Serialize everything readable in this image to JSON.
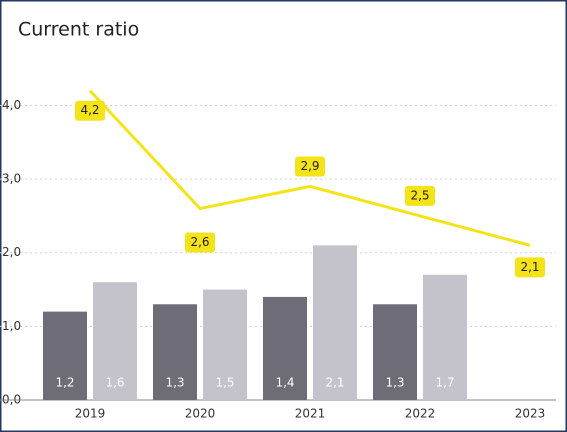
{
  "chart_data": {
    "type": "bar",
    "title": "Current ratio",
    "categories": [
      "2019",
      "2020",
      "2021",
      "2022",
      "2023"
    ],
    "series": [
      {
        "type": "bar",
        "color": "#6d6c77",
        "values": [
          1.2,
          1.3,
          1.4,
          1.3,
          null
        ],
        "value_labels": [
          "1,2",
          "1,3",
          "1,4",
          "1,3",
          null
        ]
      },
      {
        "type": "bar",
        "color": "#c4c3cc",
        "values": [
          1.6,
          1.5,
          2.1,
          1.7,
          null
        ],
        "value_labels": [
          "1,6",
          "1,5",
          "2,1",
          "1,7",
          null
        ]
      },
      {
        "type": "line",
        "color": "#f5e31a",
        "values": [
          4.2,
          2.6,
          2.9,
          2.5,
          2.1
        ],
        "value_labels": [
          "4,2",
          "2,6",
          "2,9",
          "2,5",
          "2,1"
        ]
      }
    ],
    "ylim": [
      0,
      4.4
    ],
    "yticks": [
      {
        "value": 0,
        "label": "0,0"
      },
      {
        "value": 1,
        "label": "1,0"
      },
      {
        "value": 2,
        "label": "2,0"
      },
      {
        "value": 3,
        "label": "3,0"
      },
      {
        "value": 4,
        "label": "4,0"
      }
    ],
    "grid": true
  }
}
